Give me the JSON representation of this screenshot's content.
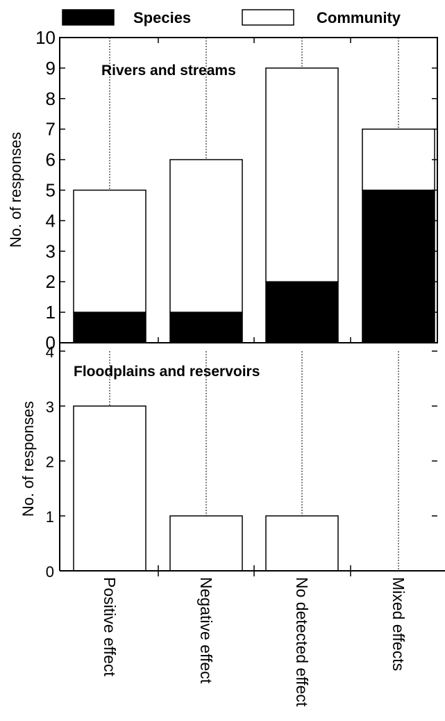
{
  "legend": {
    "items": [
      {
        "label": "Species",
        "color": "#000000"
      },
      {
        "label": "Community",
        "color": "#ffffff"
      }
    ]
  },
  "chart_data": [
    {
      "type": "bar",
      "stacked": true,
      "title": "Rivers and streams",
      "ylabel": "No. of responses",
      "ylim": [
        0,
        10
      ],
      "yticks": [
        0,
        1,
        2,
        3,
        4,
        5,
        6,
        7,
        8,
        9,
        10
      ],
      "categories": [
        "Positive effect",
        "Negative effect",
        "No detected effect",
        "Mixed effects"
      ],
      "series": [
        {
          "name": "Species",
          "color": "#000000",
          "values": [
            1,
            1,
            2,
            5
          ]
        },
        {
          "name": "Community",
          "color": "#ffffff",
          "values": [
            4,
            5,
            7,
            2
          ]
        }
      ]
    },
    {
      "type": "bar",
      "stacked": true,
      "title": "Floodplains and reservoirs",
      "ylabel": "No. of responses",
      "ylim": [
        0,
        4
      ],
      "yticks": [
        0,
        1,
        2,
        3,
        4
      ],
      "categories": [
        "Positive effect",
        "Negative effect",
        "No detected effect",
        "Mixed effects"
      ],
      "series": [
        {
          "name": "Species",
          "color": "#000000",
          "values": [
            0,
            0,
            0,
            0
          ]
        },
        {
          "name": "Community",
          "color": "#ffffff",
          "values": [
            3,
            1,
            1,
            0
          ]
        }
      ]
    }
  ]
}
